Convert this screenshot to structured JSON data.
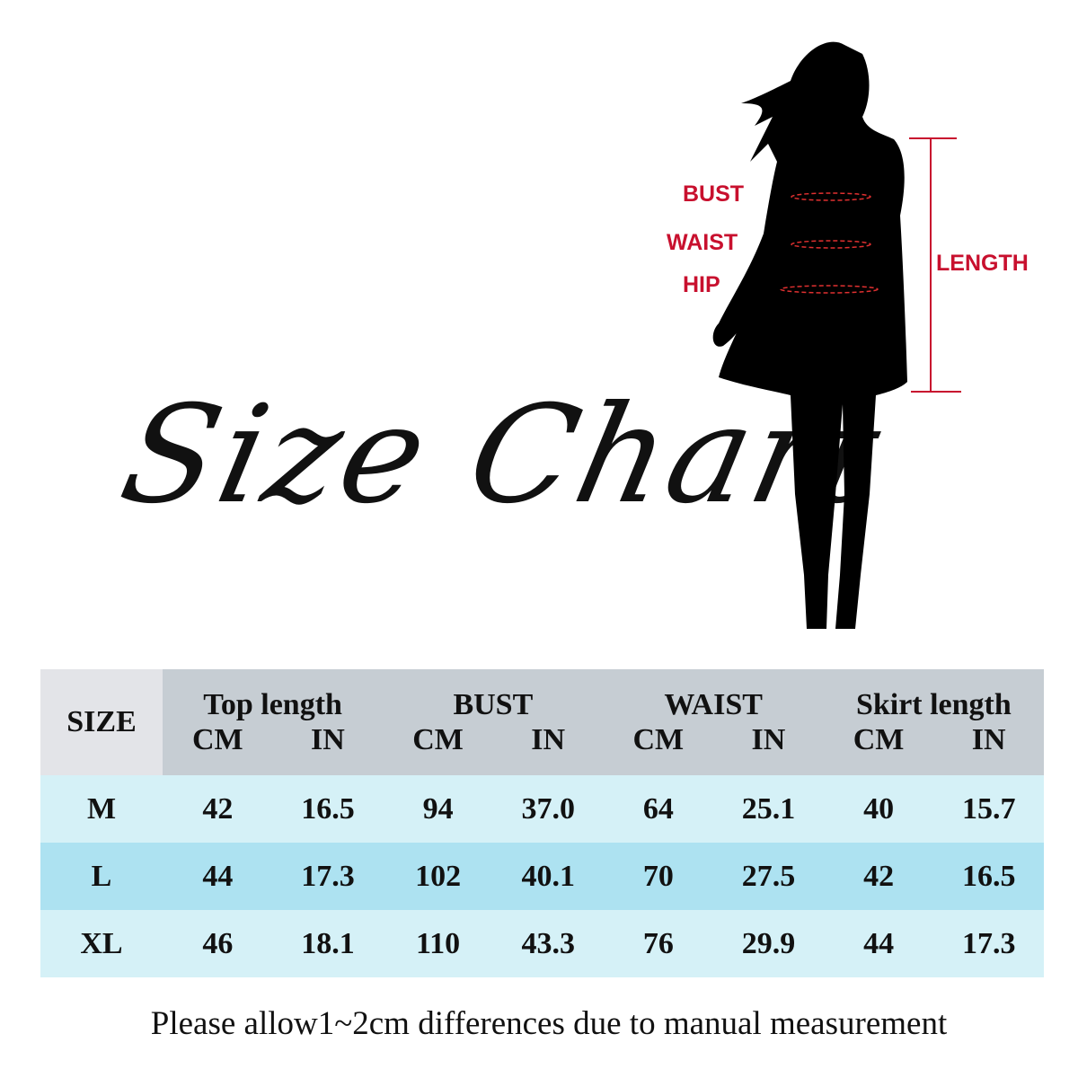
{
  "title": "Size Chart",
  "figure_labels": {
    "bust": "BUST",
    "waist": "WAIST",
    "hip": "HIP",
    "length": "LENGTH"
  },
  "colors": {
    "accent_red": "#c8102e",
    "header_gray": "#c6cdd3",
    "size_header": "#e3e4e8",
    "row_light": "#d5f1f7",
    "row_mid": "#ade2f1"
  },
  "table": {
    "size_header": "SIZE",
    "groups": [
      "Top length",
      "BUST",
      "WAIST",
      "Skirt length"
    ],
    "units": [
      "CM",
      "IN",
      "CM",
      "IN",
      "CM",
      "IN",
      "CM",
      "IN"
    ],
    "rows": [
      {
        "size": "M",
        "values": [
          "42",
          "16.5",
          "94",
          "37.0",
          "64",
          "25.1",
          "40",
          "15.7"
        ]
      },
      {
        "size": "L",
        "values": [
          "44",
          "17.3",
          "102",
          "40.1",
          "70",
          "27.5",
          "42",
          "16.5"
        ]
      },
      {
        "size": "XL",
        "values": [
          "46",
          "18.1",
          "110",
          "43.3",
          "76",
          "29.9",
          "44",
          "17.3"
        ]
      }
    ]
  },
  "note": "Please allow1~2cm differences due to manual measurement"
}
